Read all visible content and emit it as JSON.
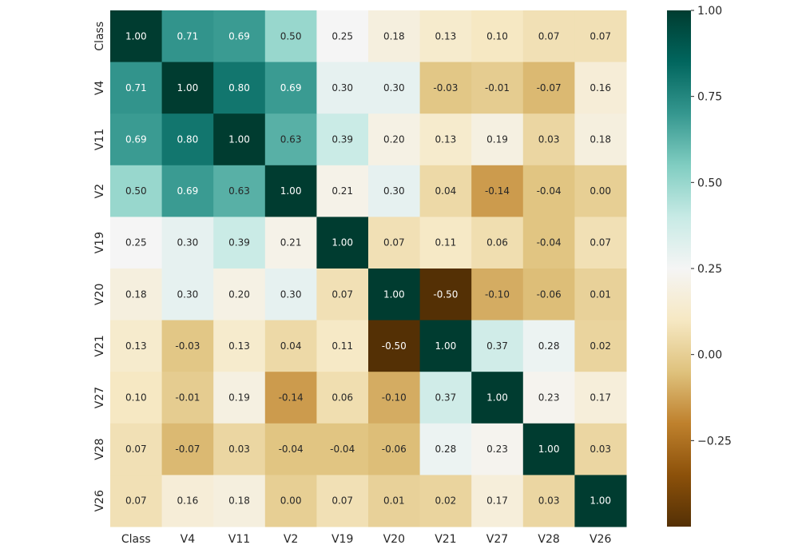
{
  "chart_data": {
    "type": "heatmap",
    "labels": [
      "Class",
      "V4",
      "V11",
      "V2",
      "V19",
      "V20",
      "V21",
      "V27",
      "V28",
      "V26"
    ],
    "matrix": [
      [
        1.0,
        0.71,
        0.69,
        0.5,
        0.25,
        0.18,
        0.13,
        0.1,
        0.07,
        0.07
      ],
      [
        0.71,
        1.0,
        0.8,
        0.69,
        0.3,
        0.3,
        -0.03,
        -0.01,
        -0.07,
        0.16
      ],
      [
        0.69,
        0.8,
        1.0,
        0.63,
        0.39,
        0.2,
        0.13,
        0.19,
        0.03,
        0.18
      ],
      [
        0.5,
        0.69,
        0.63,
        1.0,
        0.21,
        0.3,
        0.04,
        -0.14,
        -0.04,
        0.0
      ],
      [
        0.25,
        0.3,
        0.39,
        0.21,
        1.0,
        0.07,
        0.11,
        0.06,
        -0.04,
        0.07
      ],
      [
        0.18,
        0.3,
        0.2,
        0.3,
        0.07,
        1.0,
        -0.5,
        -0.1,
        -0.06,
        0.01
      ],
      [
        0.13,
        -0.03,
        0.13,
        0.04,
        0.11,
        -0.5,
        1.0,
        0.37,
        0.28,
        0.02
      ],
      [
        0.1,
        -0.01,
        0.19,
        -0.14,
        0.06,
        -0.1,
        0.37,
        1.0,
        0.23,
        0.17
      ],
      [
        0.07,
        -0.07,
        0.03,
        -0.04,
        -0.04,
        -0.06,
        0.28,
        0.23,
        1.0,
        0.03
      ],
      [
        0.07,
        0.16,
        0.18,
        0.0,
        0.07,
        0.01,
        0.02,
        0.17,
        0.03,
        1.0
      ]
    ],
    "value_format": "0.00",
    "annotate": true,
    "colormap": "BrBG",
    "vmin": -0.5,
    "vmax": 1.0,
    "colorbar_ticks": [
      1.0,
      0.75,
      0.5,
      0.25,
      0.0,
      -0.25
    ],
    "colorbar_tick_labels": [
      "1.00",
      "0.75",
      "0.50",
      "0.25",
      "0.00",
      "−0.25"
    ],
    "grid": false,
    "title": "",
    "xlabel": "",
    "ylabel": ""
  }
}
